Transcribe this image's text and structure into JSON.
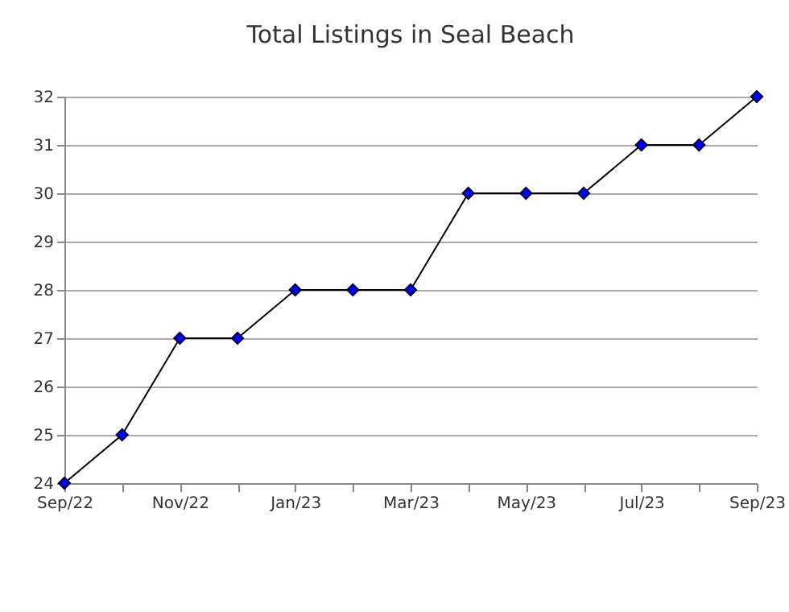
{
  "chart_data": {
    "type": "line",
    "title": "Total Listings in Seal Beach",
    "categories": [
      "Sep/22",
      null,
      "Nov/22",
      null,
      "Jan/23",
      null,
      "Mar/23",
      null,
      "May/23",
      null,
      "Jul/23",
      null,
      "Sep/23"
    ],
    "series": [
      {
        "color": "#0000ff",
        "values": [
          24,
          25,
          27,
          27,
          28,
          28,
          28,
          30,
          30,
          30,
          31,
          31,
          32
        ]
      }
    ],
    "ylim": [
      24,
      32
    ],
    "yticks": [
      24,
      25,
      26,
      27,
      28,
      29,
      30,
      31,
      32
    ],
    "grid": "y",
    "marker": "diamond",
    "line_style": "solid",
    "legend": false
  }
}
